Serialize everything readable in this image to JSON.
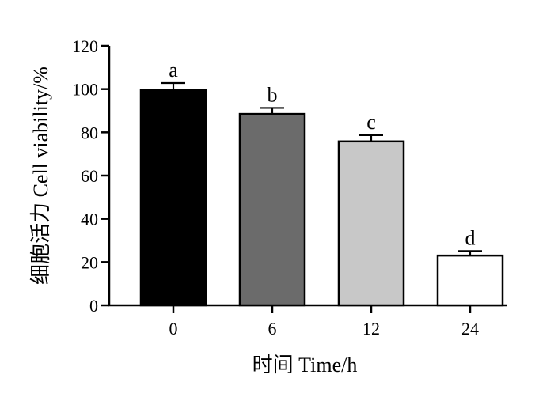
{
  "chart_data": {
    "type": "bar",
    "title": "",
    "xlabel": "时间 Time/h",
    "ylabel": "细胞活力 Cell viability/%",
    "categories": [
      "0",
      "6",
      "12",
      "24"
    ],
    "values": [
      99.5,
      88.5,
      75.8,
      23.0
    ],
    "error_upper": [
      3.3,
      2.8,
      2.9,
      2.1
    ],
    "significance_letters": [
      "a",
      "b",
      "c",
      "d"
    ],
    "bar_colors": [
      "#000000",
      "#6b6b6b",
      "#c8c8c8",
      "#ffffff"
    ],
    "ylim": [
      0,
      120
    ],
    "yticks": [
      0,
      20,
      40,
      60,
      80,
      100,
      120
    ],
    "ytick_labels": [
      "0",
      "20",
      "40",
      "60",
      "80",
      "100",
      "120"
    ],
    "grid": false,
    "legend": "none"
  }
}
